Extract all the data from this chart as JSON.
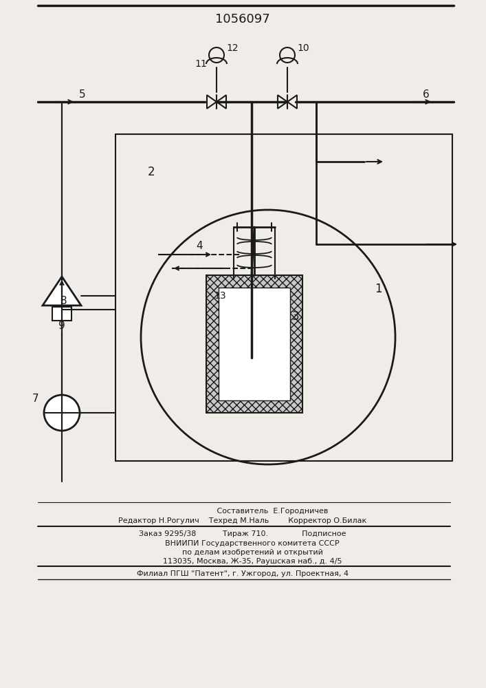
{
  "title": "1056097",
  "bg_color": "#f0ede8",
  "line_color": "#1a1a1a",
  "footer": {
    "line1": "                         Составитель  Е.Городничев",
    "line2": "Редактор Н.Рогулич    Техред М.Наль        Корректор О.Билак",
    "line3": "Заказ 9295/38           Тираж 710.              Подписное",
    "line4": "        ВНИИПИ Государственного комитета СССР",
    "line5": "        по делам изобретений и открытий",
    "line6": "        113035, Москва, Ж-35, Раушская наб., д. 4/5",
    "line7": "Филиал ПГШ \"Патент\", г. Ужгород, ул. Проектная, 4"
  }
}
